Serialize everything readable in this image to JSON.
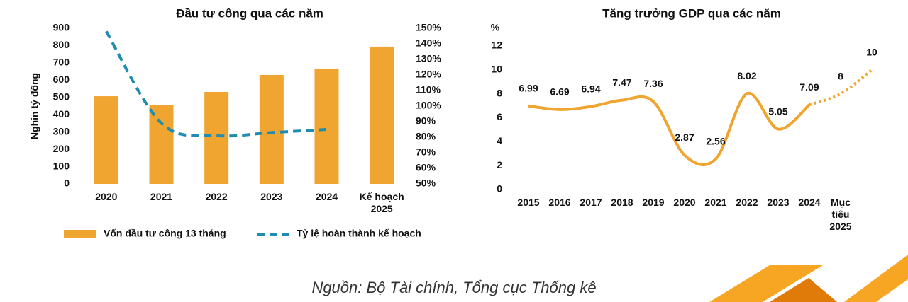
{
  "chart_data": [
    {
      "type": "bar",
      "title": "Đầu tư công qua các năm",
      "ylabel": "Nghin tỷ đồng",
      "categories": [
        "2020",
        "2021",
        "2022",
        "2023",
        "2024",
        "Kế hoạch 2025"
      ],
      "ylim": [
        0,
        900
      ],
      "yticks": [
        0,
        100,
        200,
        300,
        400,
        500,
        600,
        700,
        800,
        900
      ],
      "y2lim": [
        50,
        150
      ],
      "y2ticks": [
        {
          "value": 50,
          "label": "50%"
        },
        {
          "value": 60,
          "label": "60%"
        },
        {
          "value": 70,
          "label": "70%"
        },
        {
          "value": 80,
          "label": "80%"
        },
        {
          "value": 90,
          "label": "90%"
        },
        {
          "value": 100,
          "label": "100%"
        },
        {
          "value": 110,
          "label": "110%"
        },
        {
          "value": 120,
          "label": "120%"
        },
        {
          "value": 130,
          "label": "130%"
        },
        {
          "value": 140,
          "label": "140%"
        },
        {
          "value": 150,
          "label": "150%"
        }
      ],
      "series": [
        {
          "name": "Vốn đầu tư công 13 tháng",
          "type": "bar",
          "color": "#f0a530",
          "values": [
            507,
            454,
            532,
            630,
            667,
            794
          ]
        },
        {
          "name": "Tỷ lệ hoàn thành kế hoạch",
          "type": "line",
          "axis": "y2",
          "dashed": true,
          "color": "#1f8db0",
          "values": [
            148,
            89,
            81,
            83,
            85,
            null
          ]
        }
      ],
      "legend": "bottom"
    },
    {
      "type": "line",
      "title": "Tăng trưởng GDP qua các năm",
      "ylabel": "%",
      "categories": [
        "2015",
        "2016",
        "2017",
        "2018",
        "2019",
        "2020",
        "2021",
        "2022",
        "2023",
        "2024",
        "Mục tiêu 2025",
        null
      ],
      "values": [
        6.99,
        6.69,
        6.94,
        7.47,
        7.36,
        2.87,
        2.56,
        8.02,
        5.05,
        7.09,
        8,
        10
      ],
      "dotted_from": 9,
      "color": "#f0a530",
      "ylim": [
        0,
        12
      ],
      "yticks": [
        0,
        2,
        4,
        6,
        8,
        10,
        12
      ]
    }
  ],
  "source": "Nguồn: Bộ Tài chính, Tổng cục Thống kê"
}
